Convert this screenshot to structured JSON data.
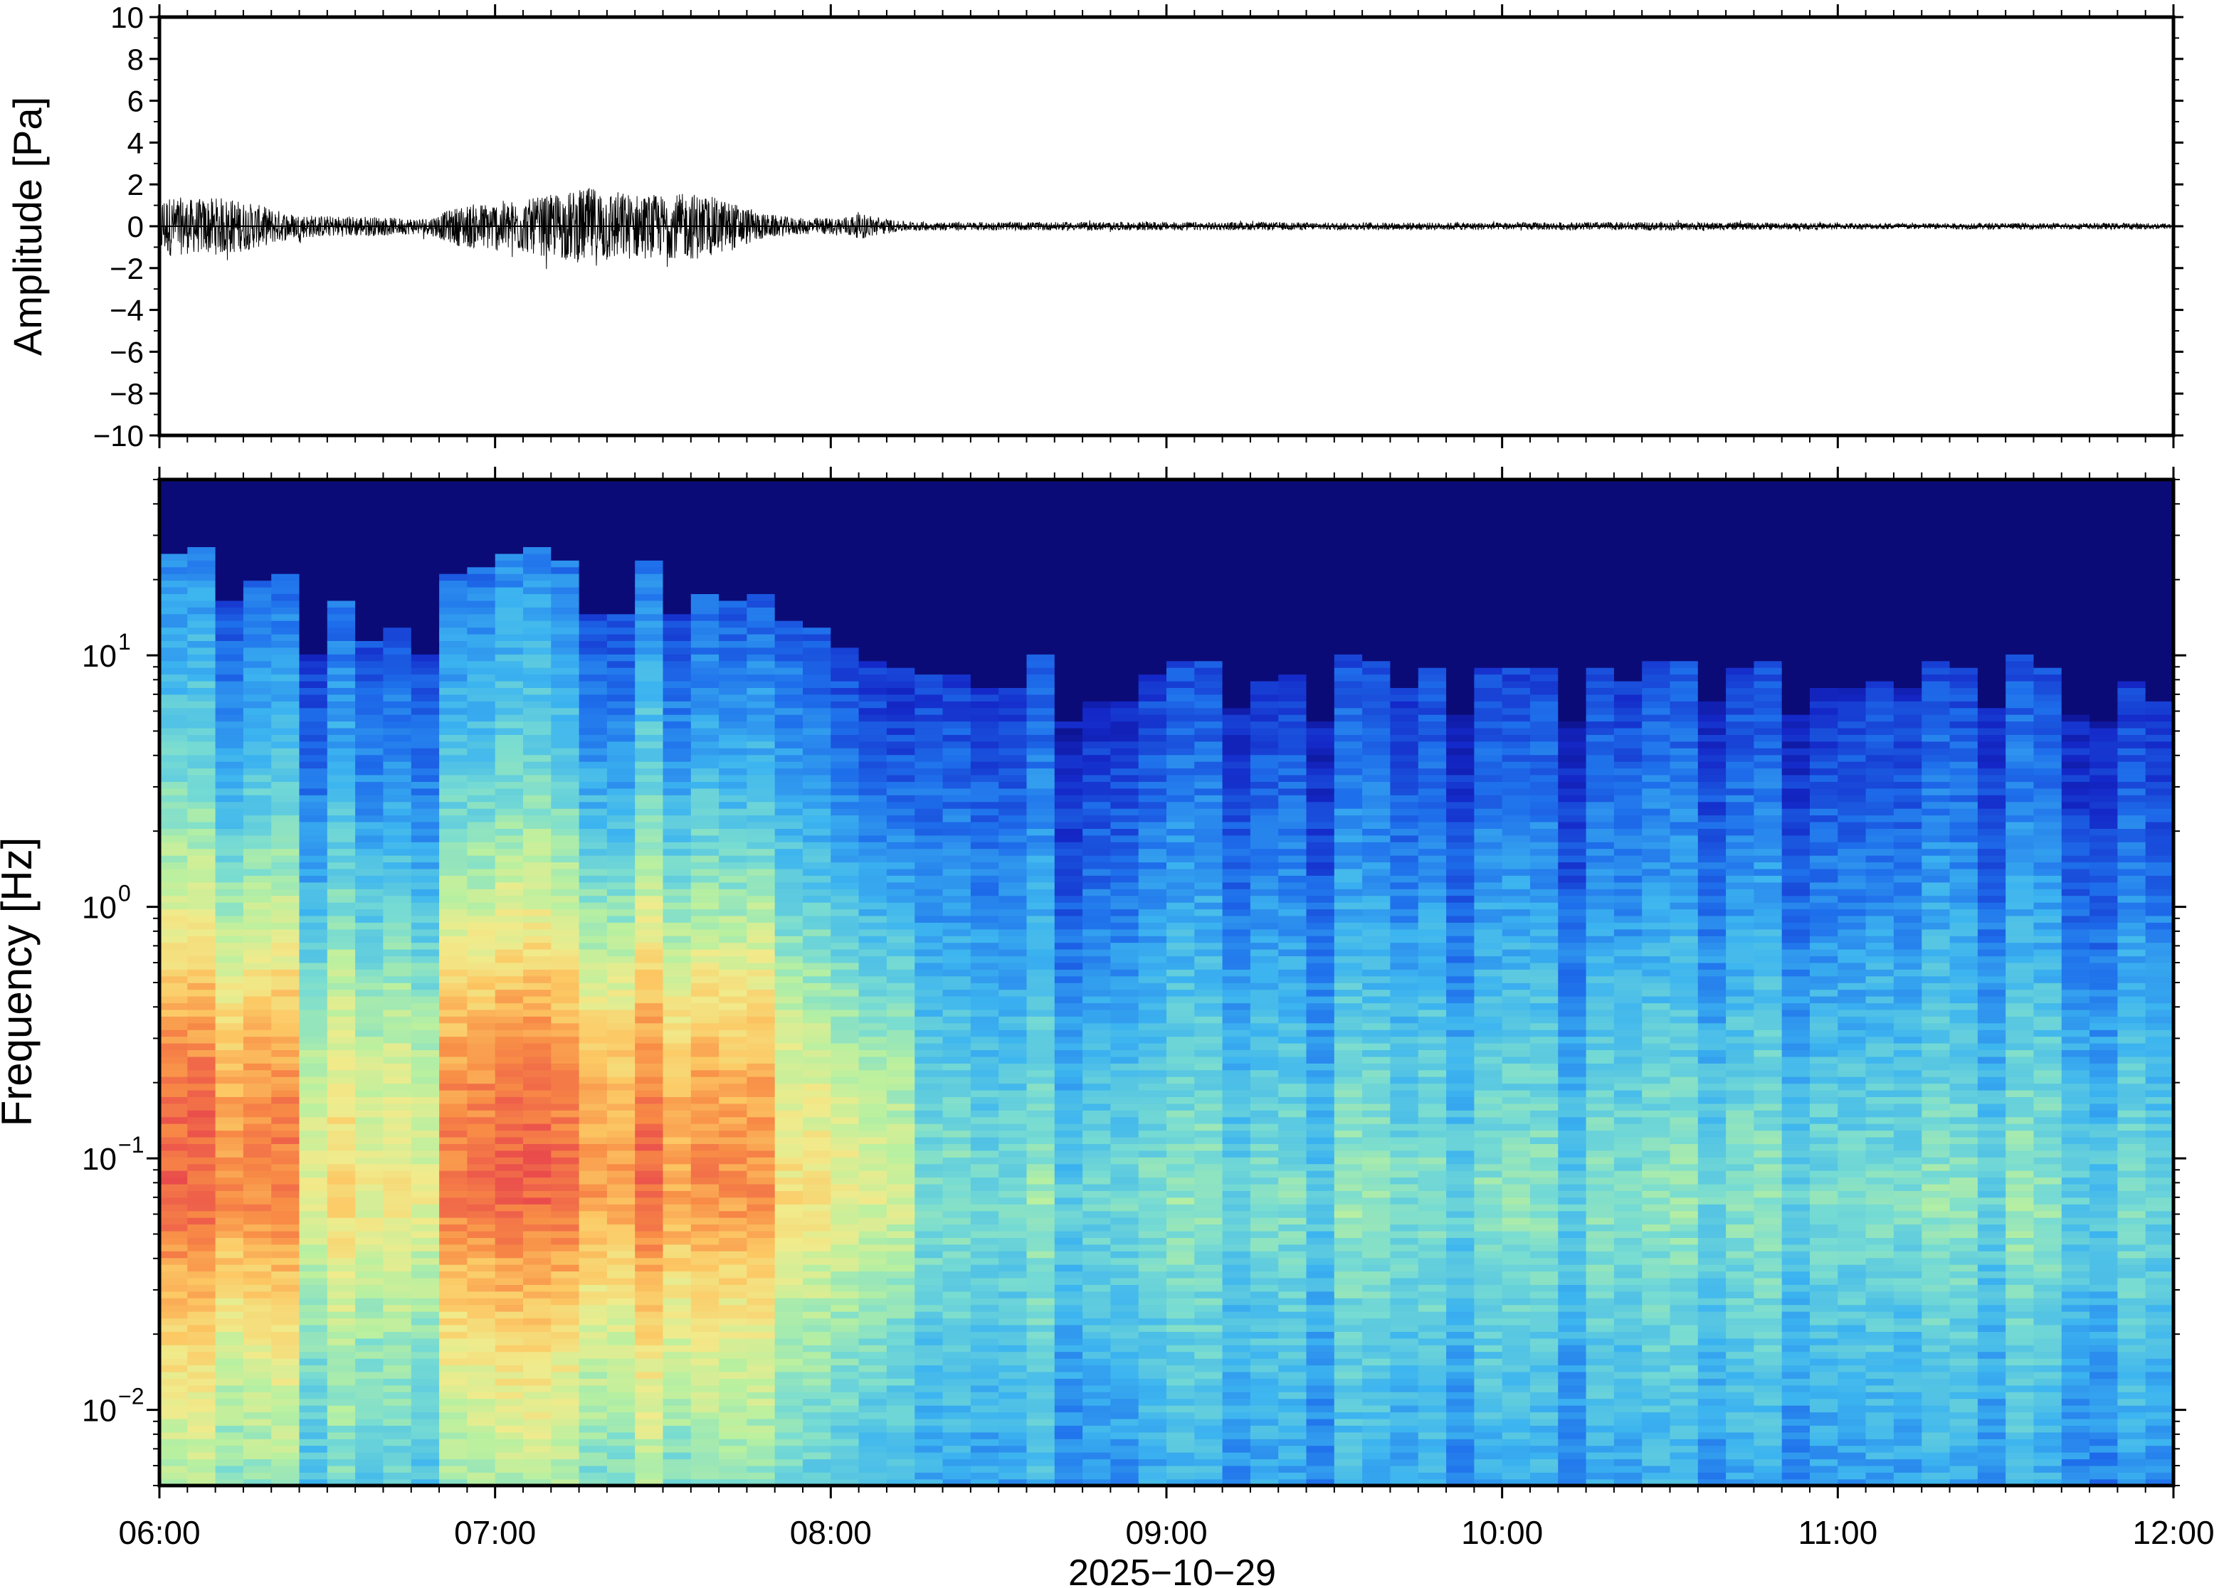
{
  "chart_data": [
    {
      "type": "line",
      "panel": "waveform",
      "ylabel": "Amplitude [Pa]",
      "ylim": [
        -10,
        10
      ],
      "yticks": [
        "10",
        "8",
        "6",
        "4",
        "2",
        "0",
        "−2",
        "−4",
        "−6",
        "−8",
        "−10"
      ],
      "ytick_values": [
        10,
        8,
        6,
        4,
        2,
        0,
        -2,
        -4,
        -6,
        -8,
        -10
      ],
      "x_range_hours": [
        6,
        12
      ],
      "series": [
        {
          "envelope_time_hours": [
            6.0,
            6.1,
            6.2,
            6.3,
            6.4,
            6.5,
            6.6,
            6.7,
            6.8,
            6.9,
            7.0,
            7.1,
            7.2,
            7.3,
            7.4,
            7.5,
            7.6,
            7.7,
            7.8,
            7.9,
            8.0,
            8.1,
            8.2,
            8.3,
            8.5,
            8.8,
            9.0,
            9.5,
            10.0,
            10.5,
            11.0,
            11.5,
            12.0
          ],
          "envelope_amplitude_pa": [
            1.5,
            1.3,
            1.4,
            1.0,
            0.6,
            0.5,
            0.5,
            0.4,
            0.4,
            1.0,
            1.2,
            1.3,
            1.6,
            1.9,
            1.6,
            1.5,
            1.6,
            1.2,
            0.6,
            0.4,
            0.4,
            0.6,
            0.25,
            0.2,
            0.2,
            0.2,
            0.2,
            0.18,
            0.18,
            0.2,
            0.15,
            0.15,
            0.15
          ]
        }
      ],
      "grid": false
    },
    {
      "type": "heatmap",
      "panel": "spectrogram",
      "ylabel": "Frequency [Hz]",
      "yscale": "log",
      "ylim": [
        0.005,
        50
      ],
      "yticks": [
        "10^1",
        "10^0",
        "10^-1",
        "10^-2"
      ],
      "ytick_values": [
        10,
        1,
        0.1,
        0.01
      ],
      "xlabel": "2025−10−29",
      "xticks": [
        "06:00",
        "07:00",
        "08:00",
        "09:00",
        "10:00",
        "11:00",
        "12:00"
      ],
      "xtick_values_hours": [
        6,
        7,
        8,
        9,
        10,
        11,
        12
      ],
      "colormap": "jet-like, dark navy (low power) to red (high power)",
      "high_power_periods": [
        "06:00–06:30",
        "06:50–07:45",
        "08:05–08:15"
      ],
      "grid": false
    }
  ],
  "colors": {
    "waveform_line": "#000000",
    "axis_frame": "#000000",
    "background": "#ffffff",
    "colormap_low": "#0b0b78",
    "colormap_high": "#e8454c"
  }
}
